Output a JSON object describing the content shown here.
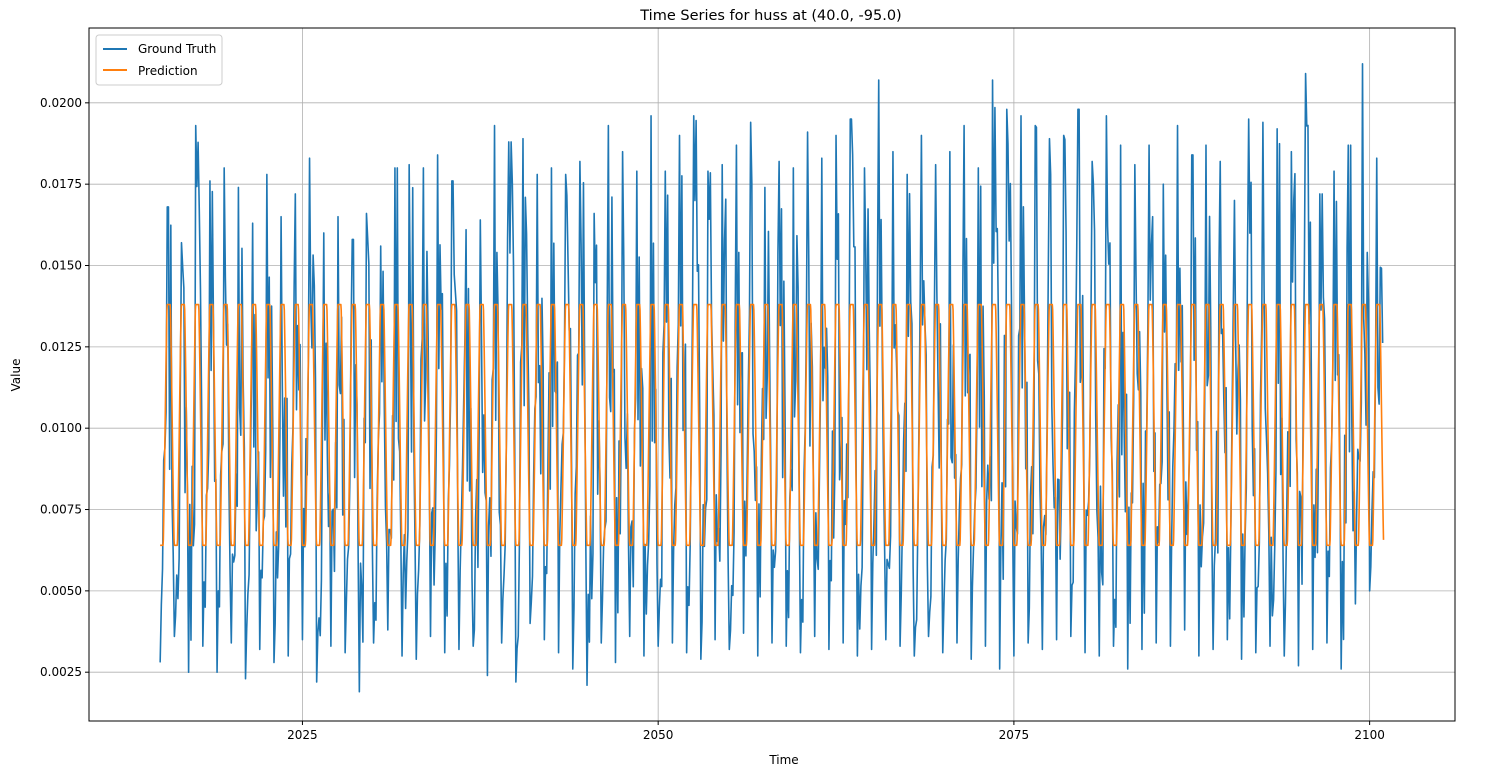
{
  "chart_data": {
    "type": "line",
    "title": "Time Series for huss at (40.0, -95.0)",
    "xlabel": "Time",
    "ylabel": "Value",
    "xlim": [
      2010.0,
      2106.0
    ],
    "ylim": [
      0.001,
      0.0223
    ],
    "xticks": [
      2025,
      2050,
      2075,
      2100
    ],
    "yticks": [
      0.0025,
      0.005,
      0.0075,
      0.01,
      0.0125,
      0.015,
      0.0175,
      0.02
    ],
    "ytick_labels": [
      "0.0025",
      "0.0050",
      "0.0075",
      "0.0100",
      "0.0125",
      "0.0150",
      "0.0175",
      "0.0200"
    ],
    "grid": true,
    "legend": "top-left",
    "x_range": [
      2015.0,
      2101.0
    ],
    "series": [
      {
        "name": "Ground Truth",
        "color": "#1f77b4",
        "seasonal_peaks": [
          0.0168,
          0.0157,
          0.0193,
          0.0176,
          0.018,
          0.0174,
          0.0163,
          0.0178,
          0.0165,
          0.0172,
          0.0183,
          0.016,
          0.0165,
          0.0158,
          0.0166,
          0.0156,
          0.018,
          0.0181,
          0.018,
          0.0184,
          0.0176,
          0.0161,
          0.0164,
          0.0193,
          0.0188,
          0.0189,
          0.0178,
          0.018,
          0.0178,
          0.0182,
          0.0166,
          0.0193,
          0.0185,
          0.0179,
          0.0196,
          0.0179,
          0.019,
          0.0196,
          0.0179,
          0.0181,
          0.0187,
          0.0194,
          0.0174,
          0.0182,
          0.018,
          0.0191,
          0.0183,
          0.019,
          0.0195,
          0.018,
          0.0207,
          0.0185,
          0.0178,
          0.019,
          0.0181,
          0.0185,
          0.0193,
          0.018,
          0.0207,
          0.0198,
          0.0196,
          0.0193,
          0.0189,
          0.019,
          0.0198,
          0.0182,
          0.0196,
          0.0187,
          0.0181,
          0.0187,
          0.0175,
          0.0193,
          0.0184,
          0.0187,
          0.0182,
          0.017,
          0.0195,
          0.0194,
          0.0192,
          0.0185,
          0.0209,
          0.0172,
          0.0179,
          0.0187,
          0.0212,
          0.0183
        ],
        "seasonal_troughs": [
          0.0028,
          0.0036,
          0.0025,
          0.0033,
          0.0025,
          0.0034,
          0.0023,
          0.0032,
          0.0028,
          0.003,
          0.0035,
          0.0022,
          0.0033,
          0.0031,
          0.0019,
          0.0034,
          0.0038,
          0.003,
          0.0029,
          0.0036,
          0.0031,
          0.0032,
          0.0033,
          0.0024,
          0.0034,
          0.0022,
          0.004,
          0.0035,
          0.0031,
          0.0026,
          0.0021,
          0.0034,
          0.0028,
          0.0036,
          0.003,
          0.0033,
          0.0034,
          0.0031,
          0.0029,
          0.0035,
          0.0032,
          0.0037,
          0.003,
          0.0034,
          0.0033,
          0.0031,
          0.0036,
          0.0032,
          0.0034,
          0.003,
          0.0032,
          0.0035,
          0.0033,
          0.003,
          0.0036,
          0.0031,
          0.0034,
          0.0029,
          0.0033,
          0.0026,
          0.003,
          0.0034,
          0.0032,
          0.0035,
          0.0036,
          0.0031,
          0.003,
          0.0033,
          0.0026,
          0.0032,
          0.0034,
          0.0033,
          0.0038,
          0.003,
          0.0032,
          0.0035,
          0.0029,
          0.0031,
          0.0033,
          0.003,
          0.0027,
          0.0032,
          0.0034,
          0.0026,
          0.0046,
          0.005
        ]
      },
      {
        "name": "Prediction",
        "color": "#ff7f0e",
        "seasonal_max": 0.0138,
        "seasonal_min": 0.0064,
        "period_years": 1.0
      }
    ]
  }
}
